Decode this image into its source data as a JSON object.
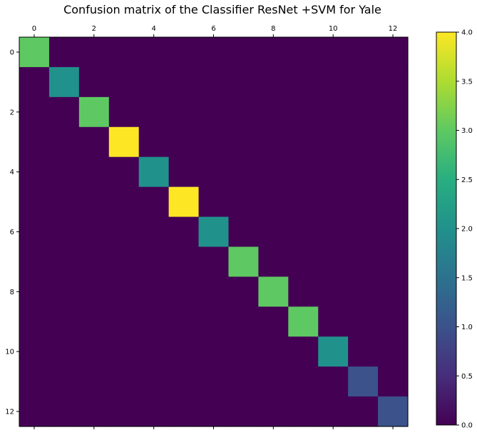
{
  "chart_data": {
    "type": "heatmap",
    "title": "Confusion matrix of the Classifier ResNet +SVM for Yale",
    "x_ticks": [
      "0",
      "2",
      "4",
      "6",
      "8",
      "10",
      "12"
    ],
    "y_ticks": [
      "0",
      "2",
      "4",
      "6",
      "8",
      "10",
      "12"
    ],
    "x_tick_values": [
      0,
      2,
      4,
      6,
      8,
      10,
      12
    ],
    "y_tick_values": [
      0,
      2,
      4,
      6,
      8,
      10,
      12
    ],
    "colorbar_ticks": [
      "0.0",
      "0.5",
      "1.0",
      "1.5",
      "2.0",
      "2.5",
      "3.0",
      "3.5",
      "4.0"
    ],
    "colorbar_tick_values": [
      0,
      0.5,
      1,
      1.5,
      2,
      2.5,
      3,
      3.5,
      4
    ],
    "colormap": "viridis",
    "vmin": 0,
    "vmax": 4,
    "matrix": [
      [
        3,
        0,
        0,
        0,
        0,
        0,
        0,
        0,
        0,
        0,
        0,
        0,
        0
      ],
      [
        0,
        2,
        0,
        0,
        0,
        0,
        0,
        0,
        0,
        0,
        0,
        0,
        0
      ],
      [
        0,
        0,
        3,
        0,
        0,
        0,
        0,
        0,
        0,
        0,
        0,
        0,
        0
      ],
      [
        0,
        0,
        0,
        4,
        0,
        0,
        0,
        0,
        0,
        0,
        0,
        0,
        0
      ],
      [
        0,
        0,
        0,
        0,
        2,
        0,
        0,
        0,
        0,
        0,
        0,
        0,
        0
      ],
      [
        0,
        0,
        0,
        0,
        0,
        4,
        0,
        0,
        0,
        0,
        0,
        0,
        0
      ],
      [
        0,
        0,
        0,
        0,
        0,
        0,
        2,
        0,
        0,
        0,
        0,
        0,
        0
      ],
      [
        0,
        0,
        0,
        0,
        0,
        0,
        0,
        3,
        0,
        0,
        0,
        0,
        0
      ],
      [
        0,
        0,
        0,
        0,
        0,
        0,
        0,
        0,
        3,
        0,
        0,
        0,
        0
      ],
      [
        0,
        0,
        0,
        0,
        0,
        0,
        0,
        0,
        0,
        3,
        0,
        0,
        0
      ],
      [
        0,
        0,
        0,
        0,
        0,
        0,
        0,
        0,
        0,
        0,
        2,
        0,
        0
      ],
      [
        0,
        0,
        0,
        0,
        0,
        0,
        0,
        0,
        0,
        0,
        0,
        1,
        0
      ],
      [
        0,
        0,
        0,
        0,
        0,
        0,
        0,
        0,
        0,
        0,
        0,
        0,
        1
      ]
    ],
    "grid": false
  }
}
